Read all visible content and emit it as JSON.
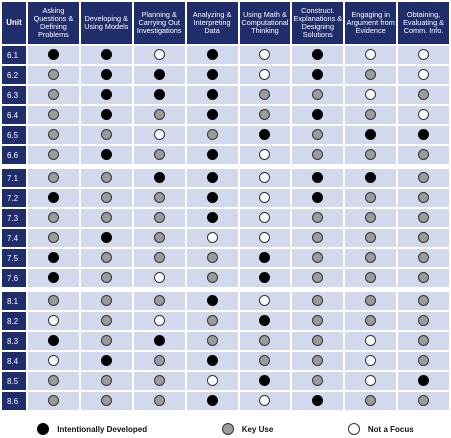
{
  "header": {
    "unit": "Unit",
    "columns": [
      "Asking Questions & Defining Problems",
      "Developing & Using Models",
      "Planning & Carrying Out Investigations",
      "Analyzing & Interpreting Data",
      "Using Math & Computational Thinking",
      "Construct. Explanations & Designing Solutions",
      "Engaging in Argument from Evidence",
      "Obtaining, Evaluating & Comm. Info."
    ]
  },
  "groups": [
    {
      "rows": [
        {
          "unit": "6.1",
          "values": [
            "D",
            "D",
            "N",
            "D",
            "N",
            "D",
            "N",
            "N"
          ]
        },
        {
          "unit": "6.2",
          "values": [
            "K",
            "D",
            "D",
            "D",
            "N",
            "D",
            "K",
            "N"
          ]
        },
        {
          "unit": "6.3",
          "values": [
            "K",
            "D",
            "D",
            "D",
            "K",
            "K",
            "N",
            "K"
          ]
        },
        {
          "unit": "6.4",
          "values": [
            "K",
            "D",
            "K",
            "D",
            "K",
            "D",
            "K",
            "N"
          ]
        },
        {
          "unit": "6.5",
          "values": [
            "K",
            "K",
            "N",
            "K",
            "D",
            "K",
            "D",
            "D"
          ]
        },
        {
          "unit": "6.6",
          "values": [
            "K",
            "D",
            "K",
            "D",
            "N",
            "K",
            "K",
            "K"
          ]
        }
      ]
    },
    {
      "rows": [
        {
          "unit": "7.1",
          "values": [
            "K",
            "K",
            "D",
            "D",
            "N",
            "D",
            "D",
            "K"
          ]
        },
        {
          "unit": "7.2",
          "values": [
            "D",
            "K",
            "K",
            "D",
            "N",
            "D",
            "K",
            "K"
          ]
        },
        {
          "unit": "7.3",
          "values": [
            "K",
            "K",
            "K",
            "D",
            "N",
            "K",
            "K",
            "K"
          ]
        },
        {
          "unit": "7.4",
          "values": [
            "K",
            "D",
            "K",
            "N",
            "N",
            "K",
            "K",
            "K"
          ]
        },
        {
          "unit": "7.5",
          "values": [
            "D",
            "K",
            "K",
            "K",
            "D",
            "K",
            "K",
            "K"
          ]
        },
        {
          "unit": "7.6",
          "values": [
            "D",
            "K",
            "N",
            "K",
            "D",
            "K",
            "K",
            "K"
          ]
        }
      ]
    },
    {
      "rows": [
        {
          "unit": "8.1",
          "values": [
            "K",
            "K",
            "K",
            "D",
            "N",
            "K",
            "K",
            "K"
          ]
        },
        {
          "unit": "8.2",
          "values": [
            "N",
            "K",
            "N",
            "K",
            "D",
            "K",
            "K",
            "K"
          ]
        },
        {
          "unit": "8.3",
          "values": [
            "D",
            "K",
            "D",
            "K",
            "K",
            "K",
            "N",
            "K"
          ]
        },
        {
          "unit": "8.4",
          "values": [
            "N",
            "D",
            "K",
            "D",
            "K",
            "K",
            "N",
            "K"
          ]
        },
        {
          "unit": "8.5",
          "values": [
            "K",
            "K",
            "K",
            "N",
            "D",
            "K",
            "N",
            "D"
          ]
        },
        {
          "unit": "8.6",
          "values": [
            "K",
            "K",
            "K",
            "D",
            "N",
            "D",
            "K",
            "K"
          ]
        }
      ]
    }
  ],
  "legend": [
    {
      "key": "D",
      "label": "Intentionally Developed"
    },
    {
      "key": "K",
      "label": "Key Use"
    },
    {
      "key": "N",
      "label": "Not a Focus"
    }
  ],
  "colors": {
    "header_bg": "#1f2d6b",
    "cell_bg": "#d3d9ec",
    "developed": "#000000",
    "key_use": "#9b9b9b",
    "not_focus": "#ffffff"
  }
}
